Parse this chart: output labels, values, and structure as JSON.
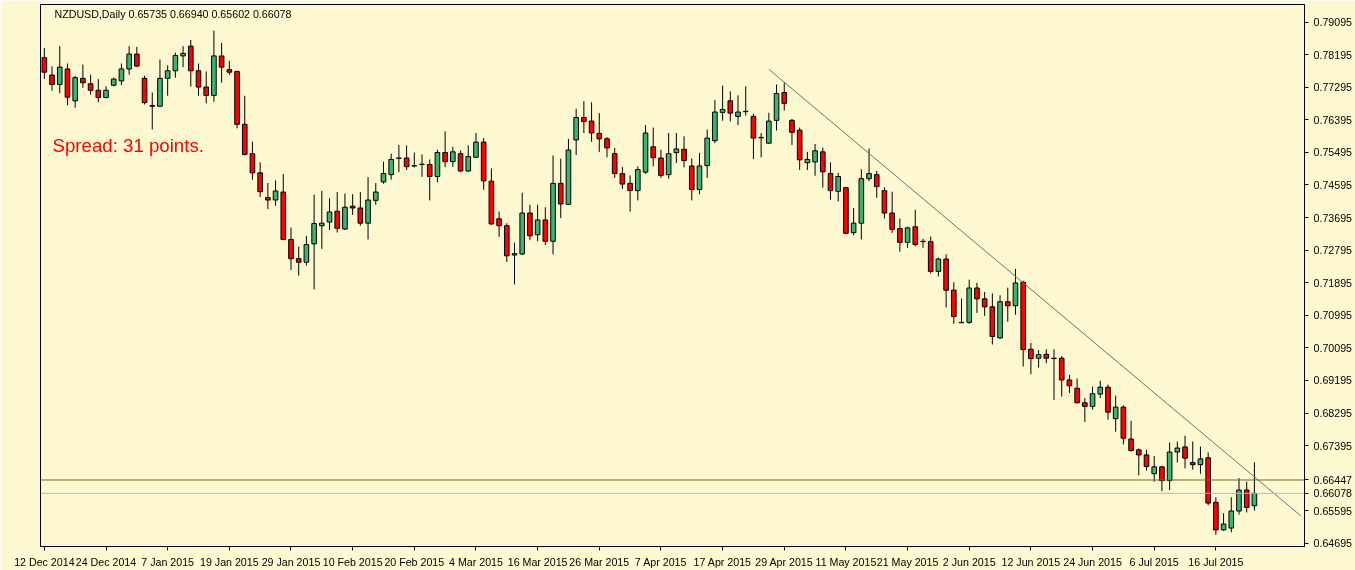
{
  "chart_data": {
    "type": "candlestick",
    "title": "NZDUSD,Daily  0.65735 0.66940 0.65602 0.66078",
    "annotations": [
      "Spread: 31 points."
    ],
    "categories": [
      "12 Dec 2014",
      null,
      null,
      null,
      null,
      null,
      null,
      null,
      "24 Dec 2014",
      null,
      null,
      null,
      null,
      null,
      null,
      null,
      "7 Jan 2015",
      null,
      null,
      null,
      null,
      null,
      null,
      null,
      "19 Jan 2015",
      null,
      null,
      null,
      null,
      null,
      null,
      null,
      "29 Jan 2015",
      null,
      null,
      null,
      null,
      null,
      null,
      null,
      "10 Feb 2015",
      null,
      null,
      null,
      null,
      null,
      null,
      null,
      "20 Feb 2015",
      null,
      null,
      null,
      null,
      null,
      null,
      null,
      "4 Mar 2015",
      null,
      null,
      null,
      null,
      null,
      null,
      null,
      "16 Mar 2015",
      null,
      null,
      null,
      null,
      null,
      null,
      null,
      "26 Mar 2015",
      null,
      null,
      null,
      null,
      null,
      null,
      null,
      "7 Apr 2015",
      null,
      null,
      null,
      null,
      null,
      null,
      null,
      "17 Apr 2015",
      null,
      null,
      null,
      null,
      null,
      null,
      null,
      "29 Apr 2015",
      null,
      null,
      null,
      null,
      null,
      null,
      null,
      "11 May 2015",
      null,
      null,
      null,
      null,
      null,
      null,
      null,
      "21 May 2015",
      null,
      null,
      null,
      null,
      null,
      null,
      null,
      "2 Jun 2015",
      null,
      null,
      null,
      null,
      null,
      null,
      null,
      "12 Jun 2015",
      null,
      null,
      null,
      null,
      null,
      null,
      null,
      "24 Jun 2015",
      null,
      null,
      null,
      null,
      null,
      null,
      null,
      "6 Jul 2015",
      null,
      null,
      null,
      null,
      null,
      null,
      null,
      "16 Jul 2015",
      null,
      null,
      null,
      null,
      null,
      null,
      null,
      null,
      null,
      null,
      null
    ],
    "ohlc": [
      [
        0.7811,
        0.7838,
        0.7752,
        0.7771
      ],
      [
        0.7763,
        0.7787,
        0.772,
        0.7737
      ],
      [
        0.7737,
        0.7843,
        0.7713,
        0.7785
      ],
      [
        0.778,
        0.7795,
        0.768,
        0.7702
      ],
      [
        0.7692,
        0.7761,
        0.7673,
        0.7756
      ],
      [
        0.7754,
        0.7792,
        0.7728,
        0.7742
      ],
      [
        0.7739,
        0.7764,
        0.7709,
        0.7721
      ],
      [
        0.7721,
        0.7752,
        0.7688,
        0.7701
      ],
      [
        0.7701,
        0.7732,
        0.7699,
        0.7721
      ],
      [
        0.7735,
        0.7756,
        0.7732,
        0.7752
      ],
      [
        0.7747,
        0.7795,
        0.7735,
        0.778
      ],
      [
        0.778,
        0.7843,
        0.7764,
        0.7821
      ],
      [
        0.7821,
        0.7841,
        0.7785,
        0.7788
      ],
      [
        0.7754,
        0.7761,
        0.7682,
        0.7687
      ],
      [
        0.7679,
        0.7715,
        0.7613,
        0.7677
      ],
      [
        0.7677,
        0.7806,
        0.7675,
        0.7754
      ],
      [
        0.7754,
        0.779,
        0.7706,
        0.7775
      ],
      [
        0.7775,
        0.7825,
        0.7756,
        0.7817
      ],
      [
        0.7816,
        0.7843,
        0.7785,
        0.7823
      ],
      [
        0.7843,
        0.786,
        0.7731,
        0.7775
      ],
      [
        0.7775,
        0.7795,
        0.7706,
        0.773
      ],
      [
        0.773,
        0.7773,
        0.7685,
        0.7707
      ],
      [
        0.7707,
        0.7886,
        0.7689,
        0.7816
      ],
      [
        0.7816,
        0.7852,
        0.7742,
        0.7785
      ],
      [
        0.7778,
        0.7802,
        0.7764,
        0.7771
      ],
      [
        0.7773,
        0.7775,
        0.7616,
        0.7627
      ],
      [
        0.7627,
        0.7706,
        0.7541,
        0.7544
      ],
      [
        0.7546,
        0.7579,
        0.7474,
        0.7493
      ],
      [
        0.7493,
        0.7522,
        0.7426,
        0.7441
      ],
      [
        0.7425,
        0.7465,
        0.7393,
        0.7418
      ],
      [
        0.7418,
        0.7472,
        0.7402,
        0.7443
      ],
      [
        0.744,
        0.749,
        0.7307,
        0.7309
      ],
      [
        0.7309,
        0.7342,
        0.7225,
        0.7256
      ],
      [
        0.7256,
        0.7289,
        0.7209,
        0.7246
      ],
      [
        0.7246,
        0.7319,
        0.7237,
        0.7295
      ],
      [
        0.7297,
        0.7433,
        0.7171,
        0.7353
      ],
      [
        0.7347,
        0.7443,
        0.7283,
        0.7354
      ],
      [
        0.7357,
        0.7423,
        0.7335,
        0.7385
      ],
      [
        0.7387,
        0.744,
        0.7328,
        0.734
      ],
      [
        0.7338,
        0.7436,
        0.7335,
        0.7398
      ],
      [
        0.7401,
        0.7434,
        0.7377,
        0.7396
      ],
      [
        0.7396,
        0.744,
        0.7347,
        0.7354
      ],
      [
        0.7354,
        0.7481,
        0.7309,
        0.7418
      ],
      [
        0.7417,
        0.7465,
        0.7405,
        0.744
      ],
      [
        0.7468,
        0.7524,
        0.7463,
        0.7491
      ],
      [
        0.7488,
        0.7546,
        0.7474,
        0.753
      ],
      [
        0.7533,
        0.757,
        0.7495,
        0.7534
      ],
      [
        0.7534,
        0.7569,
        0.7501,
        0.751
      ],
      [
        0.7512,
        0.7549,
        0.7508,
        0.7513
      ],
      [
        0.7516,
        0.7544,
        0.7482,
        0.7517
      ],
      [
        0.7516,
        0.753,
        0.7417,
        0.7483
      ],
      [
        0.7483,
        0.7557,
        0.7467,
        0.7549
      ],
      [
        0.7549,
        0.7608,
        0.7509,
        0.7524
      ],
      [
        0.7524,
        0.7565,
        0.7509,
        0.7551
      ],
      [
        0.7546,
        0.7555,
        0.7496,
        0.7498
      ],
      [
        0.7498,
        0.7569,
        0.7496,
        0.7538
      ],
      [
        0.7536,
        0.7603,
        0.7534,
        0.7578
      ],
      [
        0.7578,
        0.7589,
        0.7446,
        0.7471
      ],
      [
        0.747,
        0.7505,
        0.7349,
        0.7352
      ],
      [
        0.7366,
        0.7386,
        0.7316,
        0.7347
      ],
      [
        0.7347,
        0.7354,
        0.7247,
        0.7264
      ],
      [
        0.7266,
        0.73,
        0.7185,
        0.727
      ],
      [
        0.7269,
        0.7438,
        0.7266,
        0.7382
      ],
      [
        0.7382,
        0.7405,
        0.7307,
        0.7319
      ],
      [
        0.7322,
        0.7405,
        0.7304,
        0.7363
      ],
      [
        0.7363,
        0.7398,
        0.7294,
        0.7304
      ],
      [
        0.7304,
        0.7541,
        0.7268,
        0.7464
      ],
      [
        0.7464,
        0.7532,
        0.7368,
        0.7407
      ],
      [
        0.7406,
        0.7587,
        0.7404,
        0.7556
      ],
      [
        0.7584,
        0.767,
        0.7542,
        0.7646
      ],
      [
        0.7646,
        0.7691,
        0.7603,
        0.7635
      ],
      [
        0.7636,
        0.7688,
        0.7579,
        0.7603
      ],
      [
        0.7602,
        0.7658,
        0.7551,
        0.7587
      ],
      [
        0.7587,
        0.7592,
        0.7536,
        0.7562
      ],
      [
        0.7546,
        0.7562,
        0.7479,
        0.7491
      ],
      [
        0.7491,
        0.7509,
        0.7448,
        0.7462
      ],
      [
        0.7464,
        0.7486,
        0.7386,
        0.7444
      ],
      [
        0.7444,
        0.7511,
        0.7417,
        0.7502
      ],
      [
        0.7495,
        0.7625,
        0.749,
        0.7603
      ],
      [
        0.7565,
        0.7618,
        0.7511,
        0.7535
      ],
      [
        0.7534,
        0.7557,
        0.7479,
        0.7486
      ],
      [
        0.7488,
        0.7603,
        0.7477,
        0.7546
      ],
      [
        0.7549,
        0.7603,
        0.752,
        0.7559
      ],
      [
        0.7558,
        0.7594,
        0.7508,
        0.7527
      ],
      [
        0.7512,
        0.7533,
        0.7417,
        0.7447
      ],
      [
        0.7447,
        0.7548,
        0.7434,
        0.7512
      ],
      [
        0.7513,
        0.7613,
        0.7479,
        0.7589
      ],
      [
        0.7582,
        0.7694,
        0.7575,
        0.7661
      ],
      [
        0.766,
        0.7734,
        0.7637,
        0.7668
      ],
      [
        0.7692,
        0.7718,
        0.7635,
        0.7658
      ],
      [
        0.7649,
        0.7707,
        0.7625,
        0.7661
      ],
      [
        0.7663,
        0.7732,
        0.7651,
        0.7662
      ],
      [
        0.7649,
        0.7656,
        0.7531,
        0.7589
      ],
      [
        0.7591,
        0.7603,
        0.7536,
        0.759
      ],
      [
        0.7575,
        0.7659,
        0.7573,
        0.7636
      ],
      [
        0.7638,
        0.7737,
        0.761,
        0.7712
      ],
      [
        0.7715,
        0.7742,
        0.7665,
        0.7685
      ],
      [
        0.7638,
        0.7642,
        0.757,
        0.7605
      ],
      [
        0.7611,
        0.7618,
        0.7501,
        0.7529
      ],
      [
        0.7521,
        0.7551,
        0.7501,
        0.753
      ],
      [
        0.7523,
        0.7573,
        0.7485,
        0.7554
      ],
      [
        0.7551,
        0.7563,
        0.7452,
        0.7496
      ],
      [
        0.7491,
        0.7522,
        0.7419,
        0.7444
      ],
      [
        0.7442,
        0.7493,
        0.7414,
        0.7483
      ],
      [
        0.7452,
        0.7454,
        0.7324,
        0.7326
      ],
      [
        0.7328,
        0.7396,
        0.7321,
        0.7354
      ],
      [
        0.7354,
        0.7503,
        0.7309,
        0.7477
      ],
      [
        0.7477,
        0.756,
        0.747,
        0.7491
      ],
      [
        0.7488,
        0.7498,
        0.7424,
        0.7455
      ],
      [
        0.7444,
        0.7453,
        0.7367,
        0.7382
      ],
      [
        0.7382,
        0.7441,
        0.7327,
        0.7337
      ],
      [
        0.7339,
        0.7367,
        0.7275,
        0.7301
      ],
      [
        0.7301,
        0.7344,
        0.7286,
        0.7341
      ],
      [
        0.7344,
        0.7391,
        0.729,
        0.7295
      ],
      [
        0.7304,
        0.7311,
        0.7286,
        0.7303
      ],
      [
        0.7303,
        0.7317,
        0.7215,
        0.7221
      ],
      [
        0.7221,
        0.7259,
        0.7207,
        0.7255
      ],
      [
        0.7255,
        0.7268,
        0.7121,
        0.7169
      ],
      [
        0.7169,
        0.7191,
        0.7076,
        0.7096
      ],
      [
        0.708,
        0.7146,
        0.7078,
        0.7079
      ],
      [
        0.708,
        0.7198,
        0.7076,
        0.7175
      ],
      [
        0.7175,
        0.7189,
        0.7106,
        0.7145
      ],
      [
        0.7145,
        0.7164,
        0.7098,
        0.7123
      ],
      [
        0.7123,
        0.716,
        0.7019,
        0.7041
      ],
      [
        0.7037,
        0.7155,
        0.7035,
        0.7137
      ],
      [
        0.7137,
        0.7176,
        0.7082,
        0.7126
      ],
      [
        0.7126,
        0.7228,
        0.7101,
        0.7189
      ],
      [
        0.7191,
        0.7195,
        0.6958,
        0.7005
      ],
      [
        0.7006,
        0.7023,
        0.6937,
        0.698
      ],
      [
        0.6981,
        0.7003,
        0.6955,
        0.6991
      ],
      [
        0.6992,
        0.7006,
        0.6967,
        0.6981
      ],
      [
        0.6981,
        0.7006,
        0.6866,
        0.698
      ],
      [
        0.6981,
        0.6987,
        0.6875,
        0.6921
      ],
      [
        0.6921,
        0.6935,
        0.6885,
        0.6905
      ],
      [
        0.6898,
        0.6925,
        0.6856,
        0.6858
      ],
      [
        0.6858,
        0.6871,
        0.6805,
        0.6848
      ],
      [
        0.6848,
        0.6903,
        0.6839,
        0.6883
      ],
      [
        0.6882,
        0.6919,
        0.6871,
        0.6901
      ],
      [
        0.6901,
        0.6908,
        0.6811,
        0.6832
      ],
      [
        0.6814,
        0.6878,
        0.6778,
        0.6846
      ],
      [
        0.6846,
        0.6851,
        0.6743,
        0.676
      ],
      [
        0.6758,
        0.6808,
        0.6723,
        0.6726
      ],
      [
        0.6728,
        0.6732,
        0.6658,
        0.6714
      ],
      [
        0.6714,
        0.6728,
        0.6671,
        0.6682
      ],
      [
        0.6662,
        0.6711,
        0.664,
        0.6681
      ],
      [
        0.6681,
        0.6683,
        0.6614,
        0.6643
      ],
      [
        0.6643,
        0.6748,
        0.6617,
        0.6722
      ],
      [
        0.6722,
        0.6751,
        0.6693,
        0.6733
      ],
      [
        0.6736,
        0.6767,
        0.6677,
        0.6705
      ],
      [
        0.6693,
        0.6751,
        0.6673,
        0.6687
      ],
      [
        0.6687,
        0.6737,
        0.6662,
        0.6703
      ],
      [
        0.6706,
        0.6721,
        0.6575,
        0.6581
      ],
      [
        0.6583,
        0.6597,
        0.6493,
        0.6507
      ],
      [
        0.6507,
        0.6553,
        0.6504,
        0.6523
      ],
      [
        0.6512,
        0.6597,
        0.65,
        0.6559
      ],
      [
        0.6559,
        0.665,
        0.6549,
        0.6617
      ],
      [
        0.6617,
        0.664,
        0.6555,
        0.6569
      ],
      [
        0.65735,
        0.6694,
        0.65602,
        0.66078
      ],
      null,
      null,
      null,
      null,
      null,
      null
    ],
    "colors": [
      "#ff0000",
      "#ff0000",
      "#3cb371",
      "#ff0000",
      "#3cb371",
      "#ff0000",
      "#ff0000",
      "#ff0000",
      "#3cb371",
      "#3cb371",
      "#3cb371",
      "#3cb371",
      "#ff0000",
      "#ff0000",
      "#ff0000",
      "#3cb371",
      "#3cb371",
      "#3cb371",
      "#3cb371",
      "#ff0000",
      "#ff0000",
      "#ff0000",
      "#3cb371",
      "#ff0000",
      "#ff0000",
      "#ff0000",
      "#ff0000",
      "#ff0000",
      "#ff0000",
      "#ff0000",
      "#3cb371",
      "#ff0000",
      "#ff0000",
      "#ff0000",
      "#3cb371",
      "#3cb371",
      "#3cb371",
      "#3cb371",
      "#ff0000",
      "#3cb371",
      "#ff0000",
      "#ff0000",
      "#3cb371",
      "#3cb371",
      "#3cb371",
      "#3cb371",
      "#3cb371",
      "#ff0000",
      "#3cb371",
      "#3cb371",
      "#ff0000",
      "#3cb371",
      "#ff0000",
      "#3cb371",
      "#ff0000",
      "#3cb371",
      "#3cb371",
      "#ff0000",
      "#ff0000",
      "#ff0000",
      "#ff0000",
      "#3cb371",
      "#3cb371",
      "#ff0000",
      "#3cb371",
      "#ff0000",
      "#3cb371",
      "#ff0000",
      "#3cb371",
      "#3cb371",
      "#ff0000",
      "#ff0000",
      "#ff0000",
      "#ff0000",
      "#ff0000",
      "#ff0000",
      "#ff0000",
      "#3cb371",
      "#3cb371",
      "#ff0000",
      "#ff0000",
      "#3cb371",
      "#3cb371",
      "#ff0000",
      "#ff0000",
      "#3cb371",
      "#3cb371",
      "#3cb371",
      "#3cb371",
      "#ff0000",
      "#3cb371",
      "#ff0000",
      "#ff0000",
      "#ff0000",
      "#3cb371",
      "#3cb371",
      "#ff0000",
      "#ff0000",
      "#ff0000",
      "#3cb371",
      "#3cb371",
      "#ff0000",
      "#ff0000",
      "#3cb371",
      "#ff0000",
      "#3cb371",
      "#3cb371",
      "#3cb371",
      "#ff0000",
      "#ff0000",
      "#ff0000",
      "#ff0000",
      "#3cb371",
      "#ff0000",
      "#ff0000",
      "#ff0000",
      "#3cb371",
      "#ff0000",
      "#ff0000",
      "#ff0000",
      "#3cb371",
      "#ff0000",
      "#ff0000",
      "#ff0000",
      "#3cb371",
      "#ff0000",
      "#3cb371",
      "#ff0000",
      "#ff0000",
      "#3cb371",
      "#ff0000",
      "#ff0000",
      "#ff0000",
      "#ff0000",
      "#ff0000",
      "#ff0000",
      "#3cb371",
      "#3cb371",
      "#ff0000",
      "#3cb371",
      "#ff0000",
      "#ff0000",
      "#ff0000",
      "#ff0000",
      "#3cb371",
      "#ff0000",
      "#3cb371",
      "#3cb371",
      "#ff0000",
      "#ff0000",
      "#3cb371",
      "#ff0000",
      "#ff0000",
      "#3cb371",
      "#3cb371",
      "#3cb371",
      "#ff0000",
      "#3cb371",
      null,
      null,
      null,
      null,
      null,
      null
    ],
    "series": [
      {
        "type": "line",
        "color": "#707070",
        "values": [
          null,
          null,
          null,
          null,
          null,
          null,
          null,
          null,
          null,
          null,
          null,
          null,
          null,
          null,
          null,
          null,
          null,
          null,
          null,
          null,
          null,
          null,
          null,
          null,
          null,
          null,
          null,
          null,
          null,
          null,
          null,
          null,
          null,
          null,
          null,
          null,
          null,
          null,
          null,
          null,
          null,
          null,
          null,
          null,
          null,
          null,
          null,
          null,
          null,
          null,
          null,
          null,
          null,
          null,
          null,
          null,
          null,
          null,
          null,
          null,
          null,
          null,
          null,
          null,
          null,
          null,
          null,
          null,
          null,
          null,
          null,
          null,
          null,
          null,
          null,
          null,
          null,
          null,
          null,
          null,
          null,
          null,
          null,
          null,
          null,
          null,
          null,
          null,
          null,
          null,
          null,
          null,
          null,
          null,
          0.7779,
          null,
          null,
          null,
          null,
          null,
          null,
          null,
          null,
          null,
          null,
          null,
          null,
          null,
          null,
          null,
          null,
          null,
          null,
          null,
          null,
          null,
          null,
          null,
          null,
          null,
          null,
          null,
          null,
          null,
          null,
          null,
          null,
          null,
          null,
          null,
          null,
          null,
          null,
          null,
          null,
          null,
          null,
          null,
          null,
          null,
          null,
          null,
          null,
          null,
          null,
          null,
          null,
          null,
          null,
          null,
          null,
          null,
          null,
          null,
          null,
          null,
          null,
          null,
          null,
          null,
          null,
          null,
          null,
          0.6546
        ]
      }
    ],
    "ref_lines": [
      {
        "axis": "y",
        "value": 0.66447,
        "label": "0.66447",
        "color": "#5f6f2f"
      },
      {
        "axis": "y",
        "value": 0.66078,
        "label": "0.66078",
        "color": "#b8b8c8"
      }
    ],
    "ylim": [
      0.6461,
      0.7958
    ],
    "yticks": [
      0.79095,
      0.78195,
      0.77295,
      0.76395,
      0.75495,
      0.74595,
      0.73695,
      0.72795,
      0.71895,
      0.70995,
      0.70095,
      0.69195,
      0.68295,
      0.67395,
      0.65595,
      0.64695
    ]
  }
}
